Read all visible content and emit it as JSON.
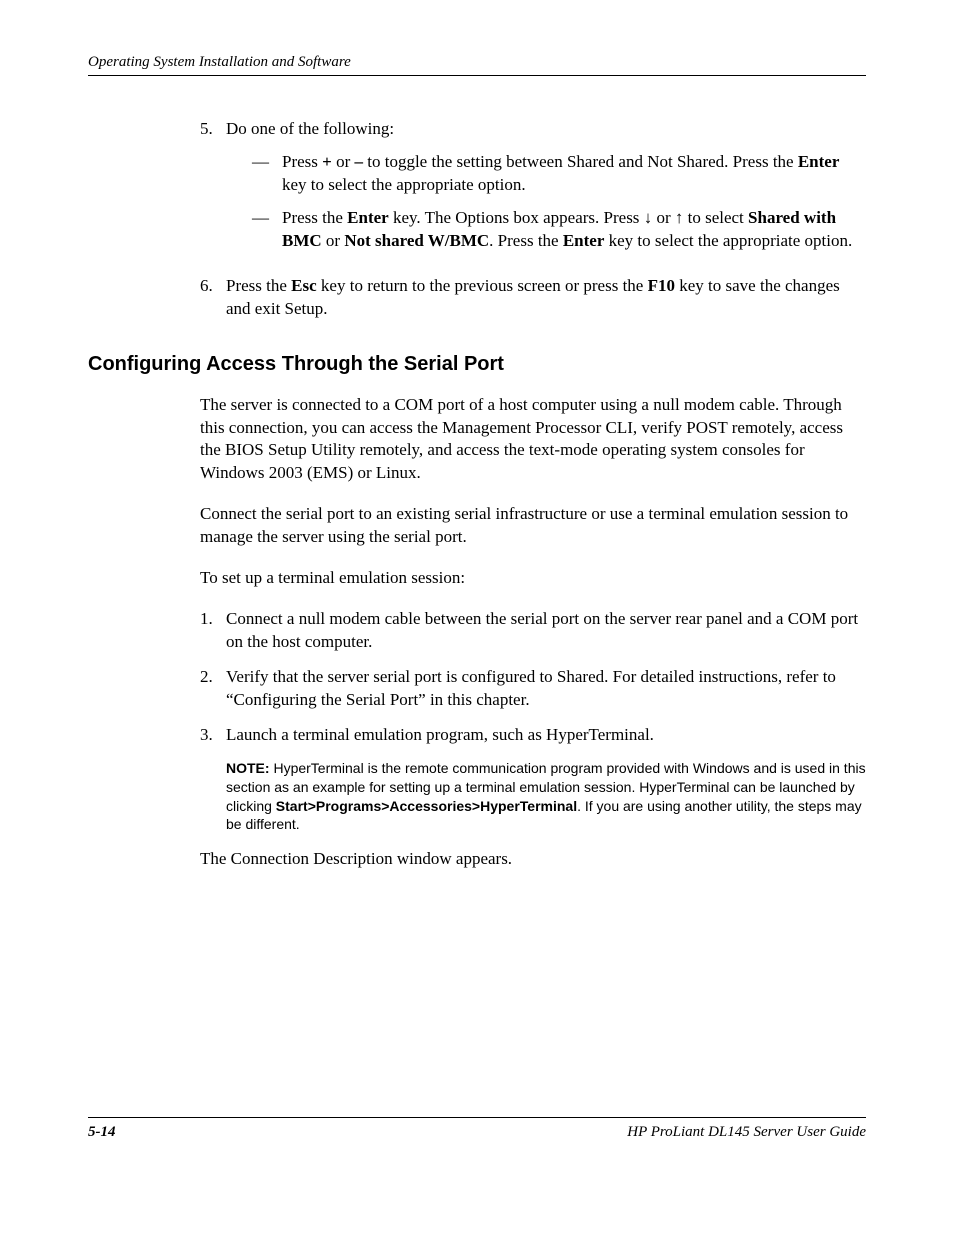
{
  "header": {
    "running_title": "Operating System Installation and Software"
  },
  "list_top": {
    "item5": {
      "num": "5.",
      "intro": "Do one of the following:",
      "sub_a": {
        "dash": "—",
        "pre": "Press ",
        "plus": "+",
        "or": " or ",
        "minus": "–",
        "mid": " to toggle the setting between Shared and Not Shared. Press the ",
        "enter": "Enter",
        "post": " key to select the appropriate option."
      },
      "sub_b": {
        "dash": "—",
        "pre": "Press the ",
        "enter1": "Enter",
        "mid1": " key. The Options box appears. Press ",
        "arrow_down": "↓",
        "or": " or ",
        "arrow_up": "↑",
        "mid2": " to select ",
        "shared_bmc": "Shared with BMC",
        "or2": " or ",
        "not_shared": "Not shared W/BMC",
        "mid3": ". Press the ",
        "enter2": "Enter",
        "post": " key to select the appropriate option."
      }
    },
    "item6": {
      "num": "6.",
      "pre": "Press the ",
      "esc": "Esc",
      "mid1": " key to return to the previous screen or press the ",
      "f10": "F10",
      "post": " key to save the changes and exit Setup."
    }
  },
  "section": {
    "heading": "Configuring Access Through the Serial Port",
    "para1": "The server is connected to a COM port of a host computer using a null modem cable. Through this connection, you can access the Management Processor CLI, verify POST remotely, access the BIOS Setup Utility remotely, and access the text-mode operating system consoles for Windows 2003 (EMS) or Linux.",
    "para2": "Connect the serial port to an existing serial infrastructure or use a terminal emulation session to manage the server using the serial port.",
    "para3": "To set up a terminal emulation session:",
    "steps": {
      "s1": {
        "num": "1.",
        "text": "Connect a null modem cable between the serial port on the server rear panel and a COM port on the host computer."
      },
      "s2": {
        "num": "2.",
        "text": "Verify that the server serial port is configured to Shared. For detailed instructions, refer to “Configuring the Serial Port” in this chapter."
      },
      "s3": {
        "num": "3.",
        "text": "Launch a terminal emulation program, such as HyperTerminal."
      }
    },
    "note": {
      "label": "NOTE:",
      "pre": "  HyperTerminal is the remote communication program provided with Windows and is used in this section as an example for setting up a terminal emulation session. HyperTerminal can be launched by clicking ",
      "path": "Start>Programs>Accessories>HyperTerminal",
      "post": ". If you are using another utility, the steps may be different."
    },
    "after_note": "The Connection Description window appears."
  },
  "footer": {
    "page_num": "5-14",
    "doc_title": "HP ProLiant DL145 Server User Guide"
  }
}
